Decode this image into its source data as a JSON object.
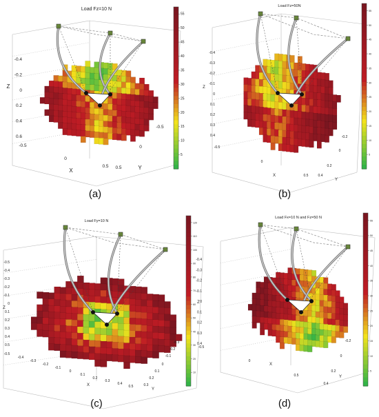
{
  "figure": {
    "panels": [
      {
        "label": "(a)",
        "title": "Load Fz=10 N",
        "axis_labels": {
          "x": "X",
          "y": "Y",
          "z": "Z"
        },
        "z_ticks": [
          "-0.4",
          "-0.2",
          "0",
          "0.2",
          "0.4",
          "0.6"
        ],
        "x_ticks": [
          "-0.5",
          "0",
          "0.5"
        ],
        "y_ticks": [
          "-0.5",
          "0",
          "0.5"
        ],
        "colorbar_ticks": [
          "5",
          "10",
          "15",
          "20",
          "25",
          "30",
          "35",
          "40",
          "45",
          "50",
          "55"
        ]
      },
      {
        "label": "(b)",
        "title": "Load Fz=50N",
        "axis_labels": {
          "x": "X",
          "y": "Y",
          "z": "Z"
        },
        "z_ticks": [
          "-0.4",
          "-0.3",
          "-0.2",
          "-0.1",
          "0",
          "0.1",
          "0.2",
          "0.3",
          "0.4"
        ],
        "x_ticks": [
          "-0.5",
          "0",
          "0.5"
        ],
        "y_ticks": [
          "-0.2",
          "0",
          "0.2",
          "0.4"
        ],
        "colorbar_ticks": [
          "5",
          "10",
          "15",
          "20",
          "25",
          "30",
          "35",
          "40",
          "45",
          "50",
          "55"
        ]
      },
      {
        "label": "(c)",
        "title": "Load Fy=10 N",
        "axis_labels": {
          "x": "X",
          "y": "Y",
          "z": "Z"
        },
        "z_ticks": [
          "-0.5",
          "-0.4",
          "-0.3",
          "-0.2",
          "-0.1",
          "0",
          "0.1",
          "0.2",
          "0.3",
          "0.4",
          "0.5"
        ],
        "x_ticks": [
          "-0.5",
          "-0.4",
          "-0.3",
          "-0.2",
          "-0.1",
          "0",
          "0.1",
          "0.2",
          "0.3",
          "0.4",
          "0.5"
        ],
        "y_ticks": [
          "-0.3",
          "-0.2",
          "-0.1",
          "0",
          "0.1",
          "0.2",
          "0.3"
        ],
        "colorbar_ticks": [
          "10",
          "20",
          "30",
          "40",
          "50",
          "60",
          "70",
          "80",
          "90",
          "100",
          "110",
          "120"
        ]
      },
      {
        "label": "(d)",
        "title": "Load Fx=10 N and Fz=50 N",
        "axis_labels": {
          "x": "X",
          "y": "Y",
          "z": "Z"
        },
        "z_ticks": [
          "-0.4",
          "-0.3",
          "-0.2",
          "-0.1",
          "0",
          "0.1",
          "0.2",
          "0.3",
          "0.4"
        ],
        "x_ticks": [
          "-0.5",
          "0",
          "0.5"
        ],
        "y_ticks": [
          "-0.2",
          "0",
          "0.2",
          "0.4"
        ],
        "colorbar_ticks": [
          "5",
          "10",
          "15",
          "20",
          "25",
          "30",
          "35",
          "40",
          "45",
          "50",
          "55"
        ]
      }
    ]
  },
  "colors": {
    "low": "#22b04b",
    "mid": "#f2e21c",
    "high": "#c01c24",
    "top": "#7a1620",
    "frame": "#555555"
  },
  "chart_data": [
    {
      "type": "other",
      "title": "Load Fz=10 N",
      "zlabel": "Z",
      "xlabel": "X",
      "ylabel": "Y",
      "colorbar_range": [
        0,
        58
      ]
    },
    {
      "type": "other",
      "title": "Load Fz=50N",
      "zlabel": "Z",
      "xlabel": "X",
      "ylabel": "Y",
      "colorbar_range": [
        0,
        58
      ]
    },
    {
      "type": "other",
      "title": "Load Fy=10 N",
      "zlabel": "Z",
      "xlabel": "X",
      "ylabel": "Y",
      "colorbar_range": [
        0,
        125
      ]
    },
    {
      "type": "other",
      "title": "Load Fx=10 N and Fz=50 N",
      "zlabel": "Z",
      "xlabel": "X",
      "ylabel": "Y",
      "colorbar_range": [
        0,
        58
      ]
    }
  ]
}
